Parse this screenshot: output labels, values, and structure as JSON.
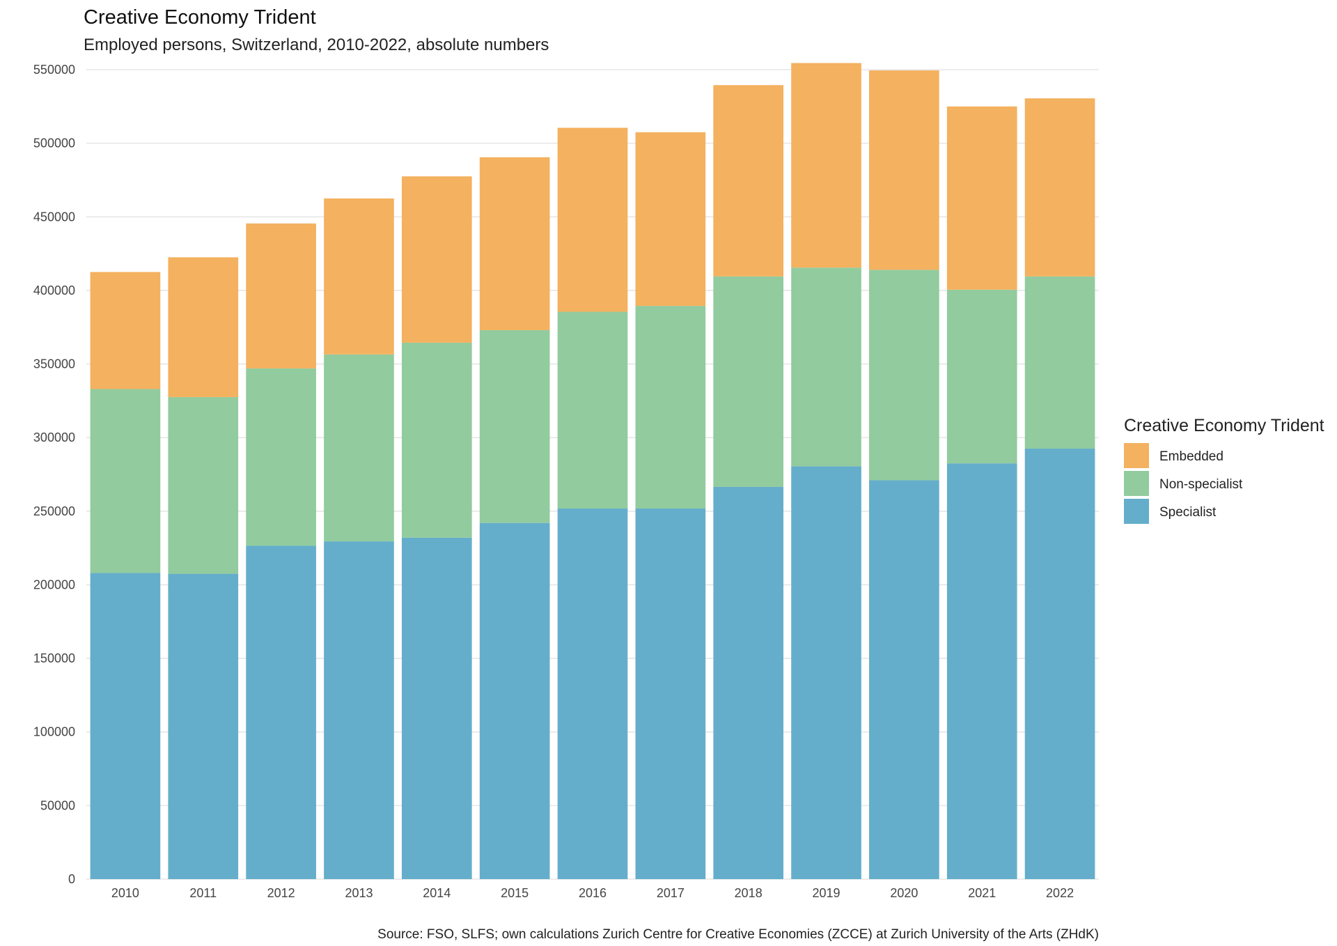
{
  "chart_data": {
    "type": "bar",
    "stacked": true,
    "title": "Creative Economy Trident",
    "subtitle": "Employed persons, Switzerland, 2010-2022, absolute numbers",
    "xlabel": "",
    "ylabel": "",
    "caption": "Source: FSO, SLFS; own calculations Zurich Centre for Creative Economies (ZCCE) at Zurich University of the Arts (ZHdK)",
    "categories": [
      "2010",
      "2011",
      "2012",
      "2013",
      "2014",
      "2015",
      "2016",
      "2017",
      "2018",
      "2019",
      "2020",
      "2021",
      "2022"
    ],
    "ylim": [
      0,
      550000
    ],
    "yticks": [
      0,
      50000,
      100000,
      150000,
      200000,
      250000,
      300000,
      350000,
      400000,
      450000,
      500000,
      550000
    ],
    "ytick_labels": [
      "0",
      "50000",
      "100000",
      "150000",
      "200000",
      "250000",
      "300000",
      "350000",
      "400000",
      "450000",
      "500000",
      "550000"
    ],
    "grid": true,
    "legend": {
      "title": "Creative Economy Trident",
      "position": "right"
    },
    "series": [
      {
        "name": "Specialist",
        "color": "#64AECB",
        "values": [
          208000,
          207500,
          226500,
          229500,
          232000,
          242000,
          251800,
          251800,
          266500,
          280500,
          271000,
          282500,
          292500
        ]
      },
      {
        "name": "Non-specialist",
        "color": "#92CB9E",
        "values": [
          125000,
          120000,
          120500,
          127000,
          132500,
          131000,
          133700,
          137700,
          143000,
          135000,
          143000,
          118000,
          117000
        ]
      },
      {
        "name": "Embedded",
        "color": "#F4B15F",
        "values": [
          79500,
          95000,
          98500,
          106000,
          113000,
          117500,
          125000,
          118000,
          130000,
          139000,
          135500,
          124500,
          121000
        ]
      }
    ],
    "legend_order": [
      "Embedded",
      "Non-specialist",
      "Specialist"
    ]
  }
}
